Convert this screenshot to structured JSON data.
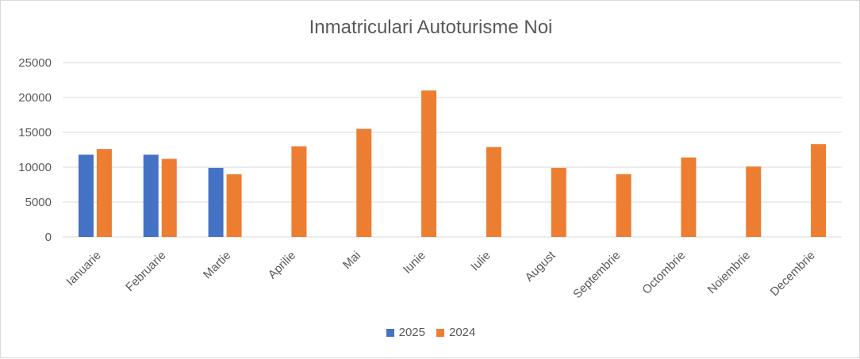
{
  "chart_data": {
    "type": "bar",
    "title": "Inmatriculari Autoturisme Noi",
    "categories": [
      "Ianuarie",
      "Februarie",
      "Martie",
      "Aprilie",
      "Mai",
      "Iunie",
      "Iulie",
      "August",
      "Septembrie",
      "Octombrie",
      "Noiembrie",
      "Decembrie"
    ],
    "series": [
      {
        "name": "2025",
        "color": "#4472c4",
        "values": [
          11800,
          11800,
          9900,
          null,
          null,
          null,
          null,
          null,
          null,
          null,
          null,
          null
        ]
      },
      {
        "name": "2024",
        "color": "#ed7d31",
        "values": [
          12600,
          11200,
          9000,
          13000,
          15500,
          21000,
          12900,
          9900,
          9000,
          11400,
          10100,
          13300
        ]
      }
    ],
    "ylim": [
      0,
      25000
    ],
    "yticks": [
      0,
      5000,
      10000,
      15000,
      20000,
      25000
    ],
    "grid": true,
    "legend": "bottom"
  }
}
